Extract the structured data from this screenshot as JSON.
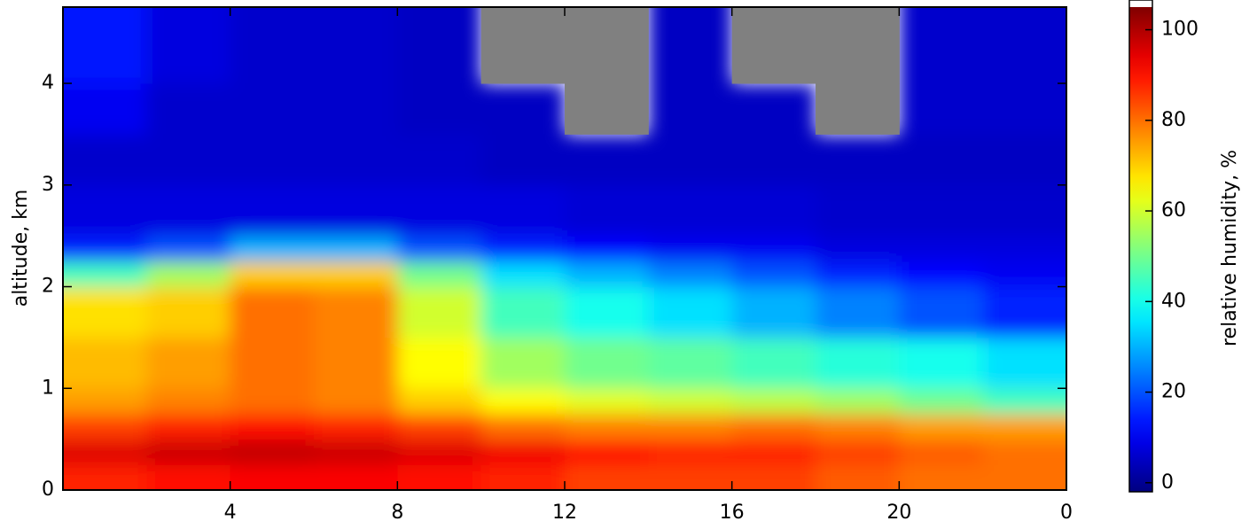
{
  "chart_data": {
    "type": "heatmap",
    "ylabel": "altitude, km",
    "colorbar_label": "relative humidity, %",
    "colormap": "jet",
    "nan_color": "#808080",
    "over_color": "#ffffff",
    "x_edges": [
      0,
      2,
      4,
      6,
      8,
      10,
      12,
      14,
      16,
      18,
      20,
      22,
      24
    ],
    "y_edges": [
      0,
      0.25,
      0.5,
      0.75,
      1.0,
      1.5,
      2.0,
      2.25,
      2.5,
      3.0,
      3.5,
      4.0,
      4.75
    ],
    "z": [
      [
        88,
        90,
        92,
        92,
        90,
        88,
        85,
        85,
        85,
        82,
        80,
        80
      ],
      [
        95,
        97,
        98,
        97,
        95,
        93,
        90,
        88,
        88,
        85,
        82,
        80
      ],
      [
        85,
        88,
        90,
        88,
        85,
        80,
        78,
        78,
        80,
        78,
        75,
        75
      ],
      [
        75,
        78,
        80,
        78,
        70,
        65,
        62,
        60,
        58,
        55,
        50,
        45
      ],
      [
        72,
        75,
        80,
        78,
        65,
        55,
        50,
        48,
        45,
        42,
        40,
        35
      ],
      [
        68,
        70,
        80,
        78,
        60,
        45,
        40,
        35,
        30,
        25,
        20,
        15
      ],
      [
        45,
        55,
        70,
        70,
        50,
        35,
        30,
        25,
        20,
        15,
        12,
        10
      ],
      [
        15,
        20,
        30,
        30,
        20,
        15,
        12,
        10,
        10,
        8,
        8,
        8
      ],
      [
        8,
        8,
        8,
        8,
        8,
        8,
        7,
        7,
        7,
        6,
        6,
        6
      ],
      [
        6,
        6,
        6,
        6,
        6,
        5,
        5,
        5,
        5,
        5,
        5,
        5
      ],
      [
        10,
        6,
        6,
        6,
        5,
        5,
        null,
        5,
        5,
        null,
        6,
        6
      ],
      [
        14,
        8,
        6,
        6,
        5,
        null,
        null,
        5,
        null,
        null,
        6,
        6
      ]
    ],
    "xlim": [
      0,
      24
    ],
    "xticks": [
      4,
      8,
      12,
      16,
      20,
      {
        "value": 24,
        "label": "0"
      }
    ],
    "ylim": [
      0,
      4.75
    ],
    "yticks": [
      0,
      1,
      2,
      3,
      4
    ],
    "zlim": [
      -2,
      105
    ],
    "zticks": [
      0,
      20,
      40,
      60,
      80,
      100
    ]
  }
}
